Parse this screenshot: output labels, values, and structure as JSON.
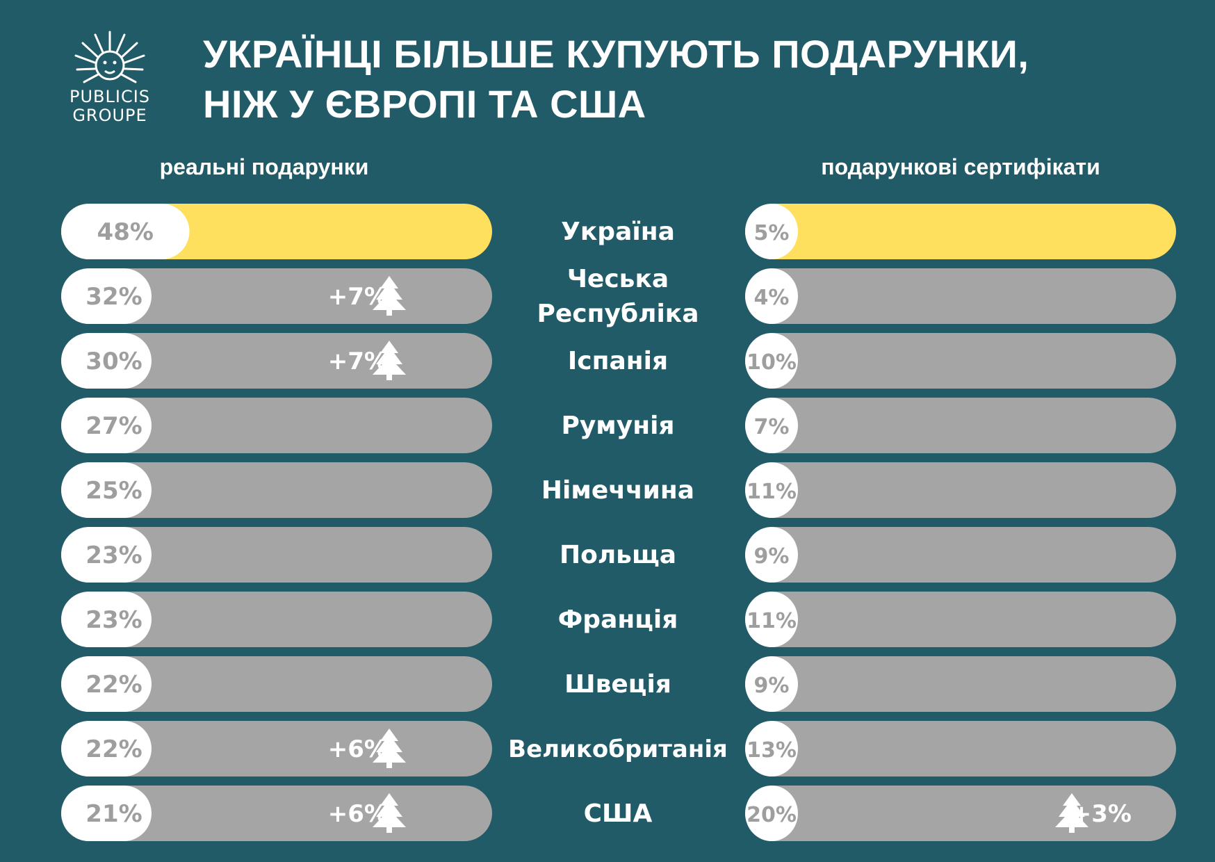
{
  "logo": {
    "text": "PUBLICIS\nGROUPE"
  },
  "title": "УКРАЇНЦІ БІЛЬШЕ КУПУЮТЬ ПОДАРУНКИ,\nНІЖ У ЄВРОПІ ТА США",
  "colors": {
    "background": "#215b67",
    "highlight": "#ffdf5e",
    "track": "#a5a5a5",
    "fill": "#ffffff",
    "label": "#9e9e9e"
  },
  "chart_data": {
    "type": "bar",
    "categories": [
      "Україна",
      "Чеська Республіка",
      "Іспанія",
      "Румунія",
      "Німеччина",
      "Польща",
      "Франція",
      "Швеція",
      "Великобританія",
      "США"
    ],
    "series": [
      {
        "name": "реальні подарунки",
        "values": [
          48,
          32,
          30,
          27,
          25,
          23,
          23,
          22,
          22,
          21
        ],
        "labels": [
          "48%",
          "32%",
          "30%",
          "27%",
          "25%",
          "23%",
          "23%",
          "22%",
          "22%",
          "21%"
        ],
        "differences": [
          "",
          "+7%",
          "+7%",
          "",
          "",
          "",
          "",
          "",
          "+6%",
          "+6%"
        ]
      },
      {
        "name": "подарункові сертифікати",
        "values": [
          5,
          4,
          10,
          7,
          11,
          9,
          11,
          9,
          13,
          20
        ],
        "labels": [
          "5%",
          "4%",
          "10%",
          "7%",
          "11%",
          "9%",
          "11%",
          "9%",
          "13%",
          "20%"
        ],
        "differences": [
          "",
          "",
          "",
          "",
          "",
          "",
          "",
          "",
          "",
          "+3%"
        ]
      }
    ],
    "highlight_category": "Україна",
    "ylim": [
      0,
      100
    ],
    "marker_icon": "tree-icon"
  }
}
